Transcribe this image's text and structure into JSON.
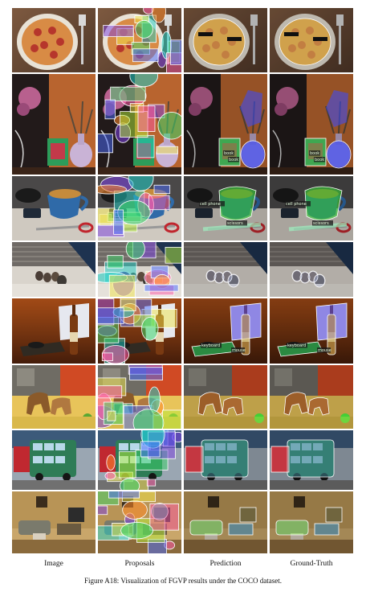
{
  "columns": [
    "Image",
    "Proposals",
    "Prediction",
    "Ground-Truth"
  ],
  "caption": "Figure A18: Visualization of FGVP results under the COCO dataset.",
  "rows": [
    {
      "id": "pizza",
      "labels": [
        "",
        ""
      ]
    },
    {
      "id": "vase",
      "labels": [
        "book",
        "book"
      ]
    },
    {
      "id": "cup",
      "labels": [
        "cell phone",
        "scissors"
      ]
    },
    {
      "id": "birds",
      "labels": [
        "",
        ""
      ]
    },
    {
      "id": "bottle",
      "labels": [
        "keyboard",
        "mouse"
      ]
    },
    {
      "id": "horses",
      "labels": [
        "",
        ""
      ]
    },
    {
      "id": "bus",
      "labels": [
        "",
        ""
      ]
    },
    {
      "id": "room",
      "labels": [
        "",
        ""
      ]
    }
  ]
}
